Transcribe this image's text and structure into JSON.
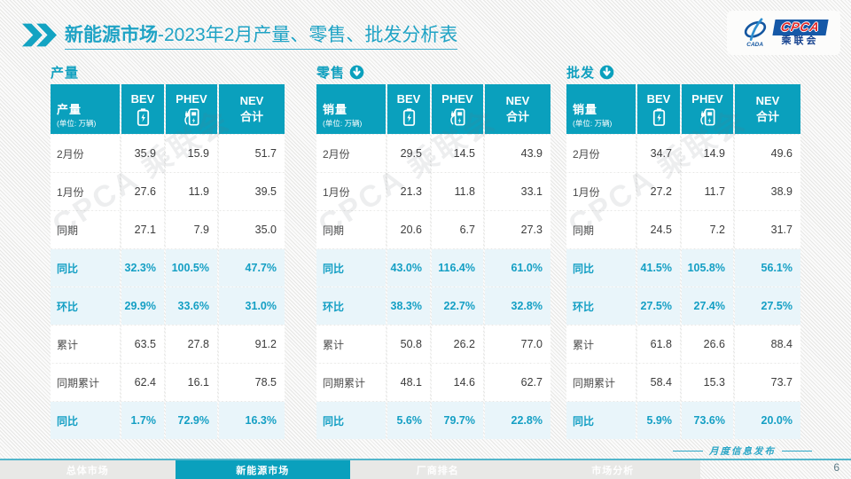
{
  "title": {
    "highlight": "新能源市场",
    "rest": "-2023年2月产量、零售、批发分析表"
  },
  "logo": {
    "cpca": "CPCA",
    "assoc": "乘联会",
    "cada": "CADA"
  },
  "watermark": "CPCA 乘联会",
  "columns": {
    "bev": "BEV",
    "phev": "PHEV",
    "nev_line1": "NEV",
    "nev_line2": "合计"
  },
  "tables": [
    {
      "section": "产量",
      "has_arrow": false,
      "measure": "产量",
      "unit": "(单位: 万辆)",
      "rows": [
        {
          "label": "2月份",
          "values": [
            "35.9",
            "15.9",
            "51.7"
          ],
          "highlight": false
        },
        {
          "label": "1月份",
          "values": [
            "27.6",
            "11.9",
            "39.5"
          ],
          "highlight": false
        },
        {
          "label": "同期",
          "values": [
            "27.1",
            "7.9",
            "35.0"
          ],
          "highlight": false
        },
        {
          "label": "同比",
          "values": [
            "32.3%",
            "100.5%",
            "47.7%"
          ],
          "highlight": true
        },
        {
          "label": "环比",
          "values": [
            "29.9%",
            "33.6%",
            "31.0%"
          ],
          "highlight": true
        },
        {
          "label": "累计",
          "values": [
            "63.5",
            "27.8",
            "91.2"
          ],
          "highlight": false
        },
        {
          "label": "同期累计",
          "values": [
            "62.4",
            "16.1",
            "78.5"
          ],
          "highlight": false
        },
        {
          "label": "同比",
          "values": [
            "1.7%",
            "72.9%",
            "16.3%"
          ],
          "highlight": true
        }
      ]
    },
    {
      "section": "零售",
      "has_arrow": true,
      "measure": "销量",
      "unit": "(单位: 万辆)",
      "rows": [
        {
          "label": "2月份",
          "values": [
            "29.5",
            "14.5",
            "43.9"
          ],
          "highlight": false
        },
        {
          "label": "1月份",
          "values": [
            "21.3",
            "11.8",
            "33.1"
          ],
          "highlight": false
        },
        {
          "label": "同期",
          "values": [
            "20.6",
            "6.7",
            "27.3"
          ],
          "highlight": false
        },
        {
          "label": "同比",
          "values": [
            "43.0%",
            "116.4%",
            "61.0%"
          ],
          "highlight": true
        },
        {
          "label": "环比",
          "values": [
            "38.3%",
            "22.7%",
            "32.8%"
          ],
          "highlight": true
        },
        {
          "label": "累计",
          "values": [
            "50.8",
            "26.2",
            "77.0"
          ],
          "highlight": false
        },
        {
          "label": "同期累计",
          "values": [
            "48.1",
            "14.6",
            "62.7"
          ],
          "highlight": false
        },
        {
          "label": "同比",
          "values": [
            "5.6%",
            "79.7%",
            "22.8%"
          ],
          "highlight": true
        }
      ]
    },
    {
      "section": "批发",
      "has_arrow": true,
      "measure": "销量",
      "unit": "(单位: 万辆)",
      "rows": [
        {
          "label": "2月份",
          "values": [
            "34.7",
            "14.9",
            "49.6"
          ],
          "highlight": false
        },
        {
          "label": "1月份",
          "values": [
            "27.2",
            "11.7",
            "38.9"
          ],
          "highlight": false
        },
        {
          "label": "同期",
          "values": [
            "24.5",
            "7.2",
            "31.7"
          ],
          "highlight": false
        },
        {
          "label": "同比",
          "values": [
            "41.5%",
            "105.8%",
            "56.1%"
          ],
          "highlight": true
        },
        {
          "label": "环比",
          "values": [
            "27.5%",
            "27.4%",
            "27.5%"
          ],
          "highlight": true
        },
        {
          "label": "累计",
          "values": [
            "61.8",
            "26.6",
            "88.4"
          ],
          "highlight": false
        },
        {
          "label": "同期累计",
          "values": [
            "58.4",
            "15.3",
            "73.7"
          ],
          "highlight": false
        },
        {
          "label": "同比",
          "values": [
            "5.9%",
            "73.6%",
            "20.0%"
          ],
          "highlight": true
        }
      ]
    }
  ],
  "footer": {
    "tabs": [
      {
        "label": "总体市场",
        "active": false
      },
      {
        "label": "新能源市场",
        "active": true
      },
      {
        "label": "厂商排名",
        "active": false
      },
      {
        "label": "市场分析",
        "active": false
      }
    ],
    "publication": "月度信息发布",
    "page": "6"
  },
  "colors": {
    "teal": "#0aa0bd",
    "title_teal": "#1fa3c5",
    "highlight_bg": "#e9f5fa",
    "highlight_text": "#149fc4"
  }
}
